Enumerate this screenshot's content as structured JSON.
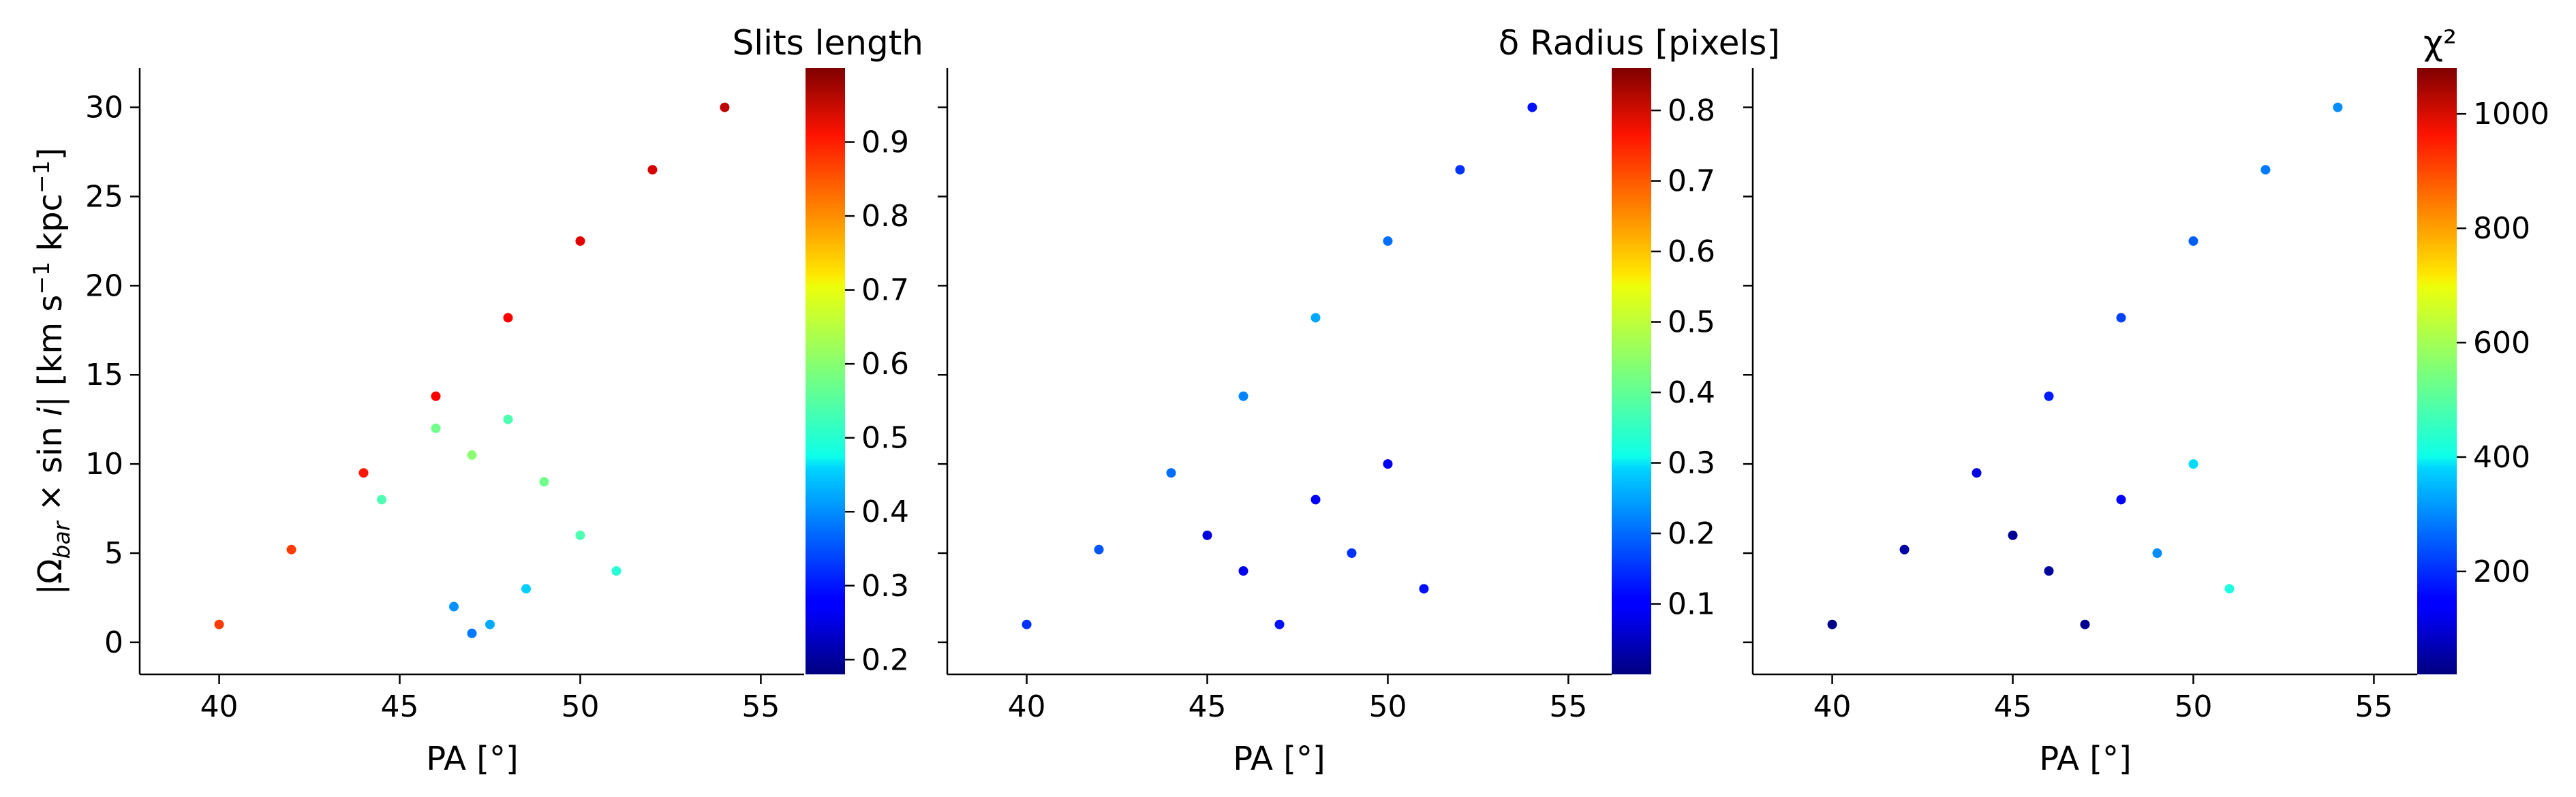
{
  "chart_data": [
    {
      "type": "scatter",
      "xlabel": "PA [°]",
      "ylabel": "|Ω_bar × sin i|  [km s⁻¹ kpc⁻¹]",
      "xlim": [
        37.8,
        56.2
      ],
      "ylim": [
        -1.8,
        32.2
      ],
      "xticks": [
        40,
        45,
        50,
        55
      ],
      "yticks": [
        0,
        5,
        10,
        15,
        20,
        25,
        30
      ],
      "colorbar": {
        "label": "Slits length",
        "range": [
          0.18,
          1.0
        ],
        "ticks": [
          0.2,
          0.3,
          0.4,
          0.5,
          0.6,
          0.7,
          0.8,
          0.9
        ],
        "colormap": "jet"
      },
      "series": [
        {
          "x": [
            40.0,
            42.0,
            44.0,
            46.0,
            48.0,
            50.0,
            52.0,
            54.0
          ],
          "y": [
            1.0,
            5.2,
            9.5,
            13.8,
            18.2,
            22.5,
            26.5,
            30.0
          ],
          "c": [
            0.85,
            0.85,
            0.88,
            0.9,
            0.9,
            0.92,
            0.93,
            0.95
          ]
        },
        {
          "x": [
            44.5,
            46.0,
            47.0,
            48.0,
            49.0,
            50.0,
            51.0
          ],
          "y": [
            8.0,
            12.0,
            10.5,
            12.5,
            9.0,
            6.0,
            4.0
          ],
          "c": [
            0.55,
            0.58,
            0.6,
            0.55,
            0.58,
            0.55,
            0.52
          ]
        },
        {
          "x": [
            46.5,
            47.0,
            47.5,
            48.5
          ],
          "y": [
            2.0,
            0.5,
            1.0,
            3.0
          ],
          "c": [
            0.4,
            0.38,
            0.42,
            0.45
          ]
        }
      ]
    },
    {
      "type": "scatter",
      "xlabel": "PA [°]",
      "xlim": [
        37.8,
        56.2
      ],
      "ylim": [
        -1.8,
        32.2
      ],
      "xticks": [
        40,
        45,
        50,
        55
      ],
      "yticks": [
        0,
        5,
        10,
        15,
        20,
        25,
        30
      ],
      "colorbar": {
        "label": "δ Radius [pixels]",
        "range": [
          0.0,
          0.86
        ],
        "ticks": [
          0.1,
          0.2,
          0.3,
          0.4,
          0.5,
          0.6,
          0.7,
          0.8
        ],
        "colormap": "jet"
      },
      "series": [
        {
          "x": [
            40.0,
            42.0,
            44.0,
            46.0,
            48.0,
            50.0,
            52.0,
            54.0
          ],
          "y": [
            1.0,
            5.2,
            9.5,
            13.8,
            18.2,
            22.5,
            26.5,
            30.0
          ],
          "c": [
            0.15,
            0.18,
            0.2,
            0.22,
            0.25,
            0.2,
            0.15,
            0.12
          ]
        },
        {
          "x": [
            45.0,
            46.0,
            47.0,
            48.0,
            49.0,
            50.0,
            51.0
          ],
          "y": [
            6.0,
            4.0,
            1.0,
            8.0,
            5.0,
            10.0,
            3.0
          ],
          "c": [
            0.08,
            0.1,
            0.12,
            0.1,
            0.15,
            0.1,
            0.12
          ]
        }
      ]
    },
    {
      "type": "scatter",
      "xlabel": "PA [°]",
      "xlim": [
        37.8,
        56.2
      ],
      "ylim": [
        -1.8,
        32.2
      ],
      "xticks": [
        40,
        45,
        50,
        55
      ],
      "yticks": [
        0,
        5,
        10,
        15,
        20,
        25,
        30
      ],
      "colorbar": {
        "label": "χ²",
        "range": [
          20,
          1080
        ],
        "ticks": [
          200,
          400,
          600,
          800,
          1000
        ],
        "colormap": "jet"
      },
      "series": [
        {
          "x": [
            40.0,
            42.0,
            44.0,
            46.0,
            48.0,
            50.0,
            52.0,
            54.0
          ],
          "y": [
            1.0,
            5.2,
            9.5,
            13.8,
            18.2,
            22.5,
            26.5,
            30.0
          ],
          "c": [
            30,
            60,
            120,
            180,
            220,
            250,
            280,
            300
          ]
        },
        {
          "x": [
            45.0,
            46.0,
            47.0,
            48.0,
            49.0,
            50.0,
            51.0
          ],
          "y": [
            6.0,
            4.0,
            1.0,
            8.0,
            5.0,
            10.0,
            3.0
          ],
          "c": [
            40,
            50,
            35,
            150,
            300,
            380,
            450
          ]
        }
      ]
    }
  ]
}
